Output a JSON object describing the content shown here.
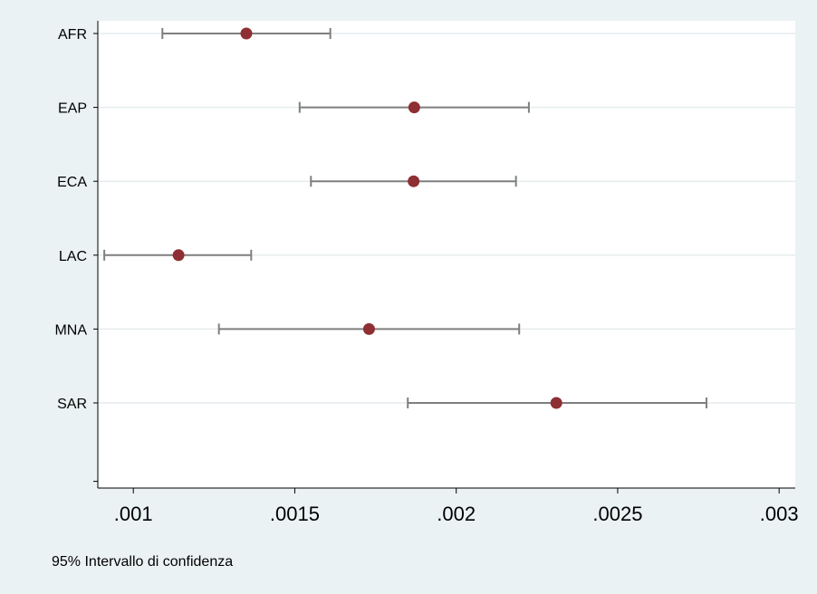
{
  "chart_data": {
    "type": "scatter",
    "title": "",
    "xlabel": "",
    "ylabel": "",
    "categories": [
      "AFR",
      "EAP",
      "ECA",
      "LAC",
      "MNA",
      "SAR"
    ],
    "series": [
      {
        "estimates": [
          0.00135,
          0.00187,
          0.001868,
          0.00114,
          0.00173,
          0.00231
        ],
        "ci_lower": [
          0.00109,
          0.001515,
          0.00155,
          0.00091,
          0.001265,
          0.00185
        ],
        "ci_upper": [
          0.00161,
          0.002225,
          0.002185,
          0.001365,
          0.002195,
          0.002775
        ]
      }
    ],
    "xlim": [
      0.00089,
      0.00305
    ],
    "xticks": [
      0.001,
      0.0015,
      0.002,
      0.0025,
      0.003
    ],
    "xtick_labels": [
      ".001",
      ".0015",
      ".002",
      ".0025",
      ".003"
    ],
    "grid": true,
    "marker_color": "#8e2f33",
    "ci_color": "#7f7f7f",
    "grid_color": "#e6ecee"
  },
  "note": "95% Intervallo di confidenza"
}
